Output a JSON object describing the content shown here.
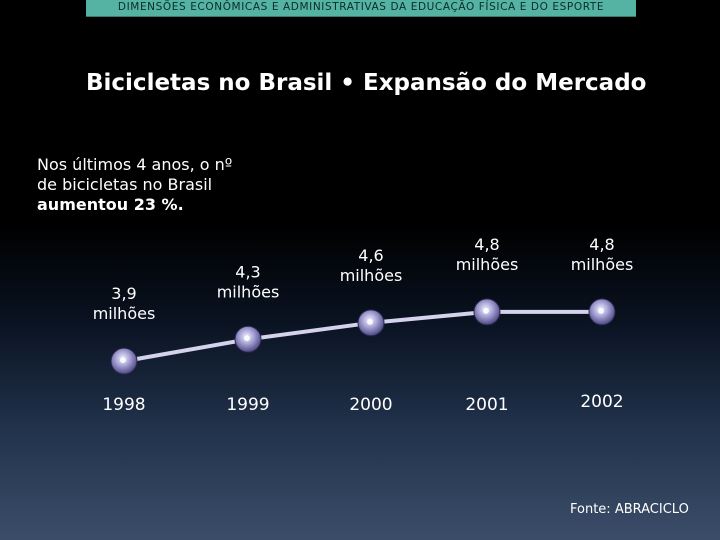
{
  "header": {
    "text": "DIMENSÕES ECONÔMICAS E ADMINISTRATIVAS DA EDUCAÇÃO FÍSICA E DO ESPORTE"
  },
  "title": "Bicicletas no Brasil • Expansão do Mercado",
  "description": {
    "line1": "Nos últimos 4 anos, o nº",
    "line2": "de bicicletas no Brasil",
    "line3": "aumentou 23 %."
  },
  "chart_data": {
    "type": "line",
    "title": "Bicicletas no Brasil • Expansão do Mercado",
    "xlabel": "",
    "ylabel": "",
    "unit": "milhões",
    "categories": [
      "1998",
      "1999",
      "2000",
      "2001",
      "2002"
    ],
    "values": [
      3.9,
      4.3,
      4.6,
      4.8,
      4.8
    ],
    "data_labels": [
      [
        "3,9",
        "milhões"
      ],
      [
        "4,3",
        "milhões"
      ],
      [
        "4,6",
        "milhões"
      ],
      [
        "4,8",
        "milhões"
      ],
      [
        "4,8",
        "milhões"
      ]
    ],
    "ylim": [
      3.3,
      5.2
    ],
    "grid": false,
    "colors": {
      "line": "#d4d2ec",
      "marker_center": "#ebe9ff",
      "marker_edge": "#5b5690"
    }
  },
  "source": "Fonte: ABRACICLO"
}
